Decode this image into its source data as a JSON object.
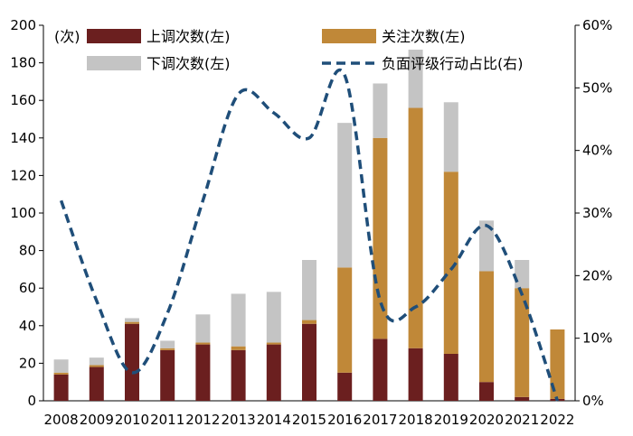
{
  "chart_data": {
    "type": "bar",
    "stacked": true,
    "categories": [
      "2008",
      "2009",
      "2010",
      "2011",
      "2012",
      "2013",
      "2014",
      "2015",
      "2016",
      "2017",
      "2018",
      "2019",
      "2020",
      "2021",
      "2022"
    ],
    "y_left_unit_label": "(次)",
    "ylim_left": [
      0,
      200
    ],
    "yticks_left": [
      "0",
      "20",
      "40",
      "60",
      "80",
      "100",
      "120",
      "140",
      "160",
      "180",
      "200"
    ],
    "ylim_right": [
      0,
      60
    ],
    "yticks_right": [
      "0%",
      "10%",
      "20%",
      "30%",
      "40%",
      "50%",
      "60%"
    ],
    "series": [
      {
        "name": "上调次数(左)",
        "color": "#6b1f1f",
        "axis": "left",
        "values": [
          14,
          18,
          41,
          27,
          30,
          27,
          30,
          41,
          15,
          33,
          28,
          25,
          10,
          2,
          1
        ]
      },
      {
        "name": "关注次数(左)",
        "color": "#c08838",
        "axis": "left",
        "values": [
          1,
          1,
          1,
          1,
          1,
          2,
          1,
          2,
          56,
          107,
          128,
          97,
          59,
          58,
          37
        ]
      },
      {
        "name": "下调次数(左)",
        "color": "#c4c4c4",
        "axis": "left",
        "values": [
          7,
          4,
          2,
          4,
          15,
          28,
          27,
          32,
          77,
          29,
          31,
          37,
          27,
          15,
          0
        ]
      },
      {
        "name": "负面评级行动占比(右)",
        "type": "line",
        "style": "dashed",
        "color": "#1f4e79",
        "axis": "right",
        "values": [
          32,
          16,
          4.5,
          14,
          32,
          49,
          46,
          42,
          52,
          16,
          15,
          21,
          28,
          17,
          0
        ]
      }
    ],
    "legend": [
      {
        "label": "上调次数(左)",
        "color": "#6b1f1f",
        "kind": "bar"
      },
      {
        "label": "关注次数(左)",
        "color": "#c08838",
        "kind": "bar"
      },
      {
        "label": "下调次数(左)",
        "color": "#c4c4c4",
        "kind": "bar"
      },
      {
        "label": "负面评级行动占比(右)",
        "color": "#1f4e79",
        "kind": "dashed-line"
      }
    ],
    "legend_placement": "top",
    "grid": false
  }
}
